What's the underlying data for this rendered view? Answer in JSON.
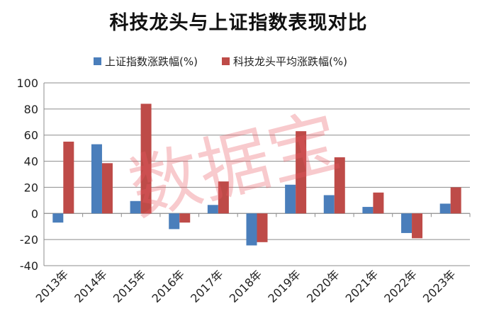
{
  "chart_data": {
    "type": "bar",
    "title": "科技龙头与上证指数表现对比",
    "categories": [
      "2013年",
      "2014年",
      "2015年",
      "2016年",
      "2017年",
      "2018年",
      "2019年",
      "2020年",
      "2021年",
      "2022年",
      "2023年"
    ],
    "series": [
      {
        "name": "上证指数涨跌幅(%)",
        "color": "#4a7ebb",
        "values": [
          -7,
          53,
          9.5,
          -12,
          6.5,
          -24.5,
          22,
          14,
          5,
          -15,
          7.5
        ]
      },
      {
        "name": "科技龙头平均涨跌幅(%)",
        "color": "#be4b48",
        "values": [
          55,
          38.5,
          84,
          -7,
          24.5,
          -22,
          63,
          43,
          16,
          -19,
          20
        ]
      }
    ],
    "ylim": [
      -40,
      100
    ],
    "yticks": [
      "-40",
      "-20",
      "0",
      "20",
      "40",
      "60",
      "80",
      "100"
    ],
    "grid": true,
    "legend_position": "top",
    "watermark": "数据宝"
  }
}
